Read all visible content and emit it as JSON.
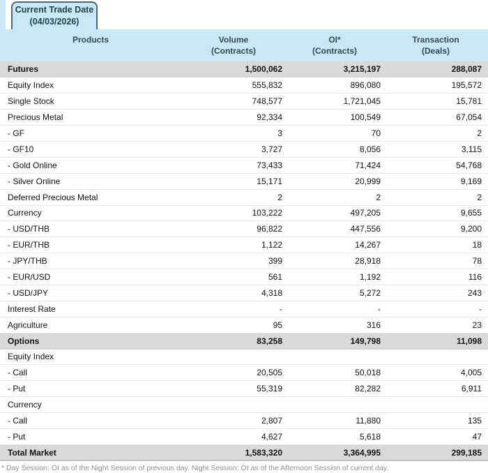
{
  "tab": {
    "line1": "Current Trade Date",
    "line2": "(04/03/2026)"
  },
  "table": {
    "headers": {
      "products_l1": "Products",
      "products_l2": "",
      "volume_l1": "Volume",
      "volume_l2": "(Contracts)",
      "oi_l1": "OI*",
      "oi_l2": "(Contracts)",
      "transaction_l1": "Transaction",
      "transaction_l2": "(Deals)"
    },
    "rows": [
      {
        "product": "Futures",
        "volume": "1,500,062",
        "oi": "3,215,197",
        "transaction": "288,087",
        "style": "section"
      },
      {
        "product": "Equity Index",
        "volume": "555,832",
        "oi": "896,080",
        "transaction": "195,572"
      },
      {
        "product": "Single Stock",
        "volume": "748,577",
        "oi": "1,721,045",
        "transaction": "15,781"
      },
      {
        "product": "Precious Metal",
        "volume": "92,334",
        "oi": "100,549",
        "transaction": "67,054"
      },
      {
        "product": "- GF",
        "volume": "3",
        "oi": "70",
        "transaction": "2"
      },
      {
        "product": "- GF10",
        "volume": "3,727",
        "oi": "8,056",
        "transaction": "3,115"
      },
      {
        "product": "- Gold Online",
        "volume": "73,433",
        "oi": "71,424",
        "transaction": "54,768"
      },
      {
        "product": "- Silver Online",
        "volume": "15,171",
        "oi": "20,999",
        "transaction": "9,169"
      },
      {
        "product": "Deferred Precious Metal",
        "volume": "2",
        "oi": "2",
        "transaction": "2"
      },
      {
        "product": "Currency",
        "volume": "103,222",
        "oi": "497,205",
        "transaction": "9,655"
      },
      {
        "product": "- USD/THB",
        "volume": "96,822",
        "oi": "447,556",
        "transaction": "9,200"
      },
      {
        "product": "- EUR/THB",
        "volume": "1,122",
        "oi": "14,267",
        "transaction": "18"
      },
      {
        "product": "- JPY/THB",
        "volume": "399",
        "oi": "28,918",
        "transaction": "78"
      },
      {
        "product": "- EUR/USD",
        "volume": "561",
        "oi": "1,192",
        "transaction": "116"
      },
      {
        "product": "- USD/JPY",
        "volume": "4,318",
        "oi": "5,272",
        "transaction": "243"
      },
      {
        "product": "Interest Rate",
        "volume": "-",
        "oi": "-",
        "transaction": "-"
      },
      {
        "product": "Agriculture",
        "volume": "95",
        "oi": "316",
        "transaction": "23"
      },
      {
        "product": "Options",
        "volume": "83,258",
        "oi": "149,798",
        "transaction": "11,098",
        "style": "section"
      },
      {
        "product": "Equity Index",
        "volume": "",
        "oi": "",
        "transaction": ""
      },
      {
        "product": "- Call",
        "volume": "20,505",
        "oi": "50,018",
        "transaction": "4,005"
      },
      {
        "product": "- Put",
        "volume": "55,319",
        "oi": "82,282",
        "transaction": "6,911"
      },
      {
        "product": "Currency",
        "volume": "",
        "oi": "",
        "transaction": ""
      },
      {
        "product": "- Call",
        "volume": "2,807",
        "oi": "11,880",
        "transaction": "135"
      },
      {
        "product": "- Put",
        "volume": "4,627",
        "oi": "5,618",
        "transaction": "47"
      },
      {
        "product": "Total Market",
        "volume": "1,583,320",
        "oi": "3,364,995",
        "transaction": "299,185",
        "style": "section total"
      }
    ]
  },
  "footnote": "* Day Session: OI as of the Night Session of previous day. Night Session: OI as of the Afternoon Session of current day.",
  "colors": {
    "header_bg": "#c9e8f6",
    "tab_fill": "#c9e8f6",
    "tab_border": "#4a6878",
    "header_text": "#2c4a60",
    "section_row_bg": "#d9d9d9"
  }
}
